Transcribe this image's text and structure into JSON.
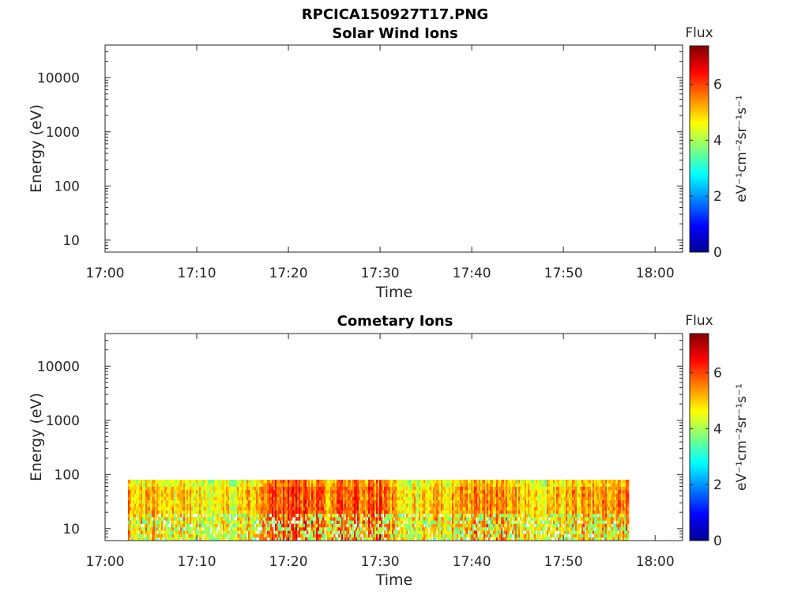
{
  "figure": {
    "title": "RPCICA150927T17.PNG"
  },
  "chart_data": [
    {
      "type": "heatmap",
      "title": "Solar Wind Ions",
      "xlabel": "Time",
      "ylabel": "Energy (eV)",
      "xticks": [
        "17:00",
        "17:10",
        "17:20",
        "17:30",
        "17:40",
        "17:50",
        "18:00"
      ],
      "xlim": [
        "17:00",
        "18:03"
      ],
      "yscale": "log",
      "yticks": [
        "10",
        "100",
        "1000",
        "10000"
      ],
      "ylim": [
        6,
        40000
      ],
      "colorbar": {
        "title": "Flux",
        "unit": "eV⁻¹cm⁻²sr⁻¹s⁻¹",
        "ticks": [
          "0",
          "2",
          "4",
          "6"
        ],
        "range": [
          0,
          7.4
        ]
      },
      "data": "empty"
    },
    {
      "type": "heatmap",
      "title": "Cometary Ions",
      "xlabel": "Time",
      "ylabel": "Energy (eV)",
      "xticks": [
        "17:00",
        "17:10",
        "17:20",
        "17:30",
        "17:40",
        "17:50",
        "18:00"
      ],
      "xlim": [
        "17:00",
        "18:03"
      ],
      "yscale": "log",
      "yticks": [
        "10",
        "100",
        "1000",
        "10000"
      ],
      "ylim": [
        6,
        40000
      ],
      "colorbar": {
        "title": "Flux",
        "unit": "eV⁻¹cm⁻²sr⁻¹s⁻¹",
        "ticks": [
          "0",
          "2",
          "4",
          "6"
        ],
        "range": [
          0,
          7.4
        ]
      },
      "data_extent": {
        "time": [
          "17:02:30",
          "17:57:00"
        ],
        "energy_ev": [
          6,
          80
        ]
      },
      "flux_levels": [
        {
          "time": "17:03",
          "flux": 5.2
        },
        {
          "time": "17:06",
          "flux": 4.8
        },
        {
          "time": "17:09",
          "flux": 4.9
        },
        {
          "time": "17:12",
          "flux": 4.6
        },
        {
          "time": "17:15",
          "flux": 4.7
        },
        {
          "time": "17:18",
          "flux": 6.0
        },
        {
          "time": "17:21",
          "flux": 6.1
        },
        {
          "time": "17:24",
          "flux": 5.5
        },
        {
          "time": "17:27",
          "flux": 5.8
        },
        {
          "time": "17:30",
          "flux": 5.9
        },
        {
          "time": "17:33",
          "flux": 4.6
        },
        {
          "time": "17:36",
          "flux": 5.0
        },
        {
          "time": "17:39",
          "flux": 5.3
        },
        {
          "time": "17:42",
          "flux": 5.4
        },
        {
          "time": "17:45",
          "flux": 5.1
        },
        {
          "time": "17:48",
          "flux": 4.9
        },
        {
          "time": "17:51",
          "flux": 5.2
        },
        {
          "time": "17:54",
          "flux": 5.3
        },
        {
          "time": "17:57",
          "flux": 5.4
        }
      ]
    }
  ]
}
